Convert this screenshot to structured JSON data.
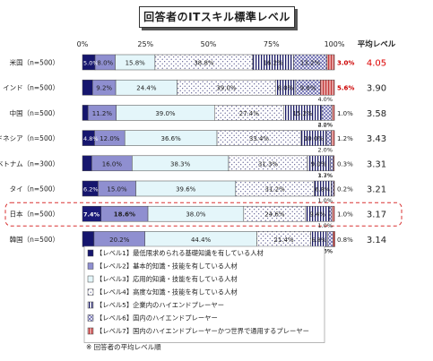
{
  "chart_data": {
    "type": "bar",
    "orientation": "horizontal",
    "stacked": true,
    "title": "回答者のITスキル標準レベル",
    "x_ticks": [
      "0%",
      "25%",
      "50%",
      "75%",
      "100%"
    ],
    "xlim": [
      0,
      100
    ],
    "avg_header": "平均レベル",
    "categories": [
      "米国（n=500）",
      "インド（n=500）",
      "中国（n=500）",
      "インドネシア（n=500）",
      "ベトナム（n=300）",
      "タイ（n=500）",
      "日本（n=500）",
      "韓国（n=500）"
    ],
    "averages": [
      "4.05",
      "3.90",
      "3.58",
      "3.43",
      "3.31",
      "3.21",
      "3.17",
      "3.14"
    ],
    "highlight_avg": [
      true,
      false,
      false,
      false,
      false,
      false,
      false,
      false
    ],
    "highlight_row": 6,
    "series": [
      {
        "name": "【レベル1】最低限求められる基礎知識を有している人材",
        "values": [
          5.0,
          4.0,
          2.2,
          4.8,
          3.7,
          6.2,
          7.4,
          4.6
        ]
      },
      {
        "name": "【レベル2】基本的知識・技能を有している人材",
        "values": [
          8.0,
          9.2,
          11.2,
          12.0,
          16.0,
          15.0,
          18.6,
          20.2
        ]
      },
      {
        "name": "【レベル3】応用的知識・技能を有している人材",
        "values": [
          15.8,
          24.4,
          39.0,
          36.6,
          38.3,
          39.6,
          38.0,
          44.4
        ]
      },
      {
        "name": "【レベル4】高度な知識・技能を有している人材",
        "values": [
          38.8,
          39.0,
          27.4,
          33.4,
          31.3,
          31.2,
          24.6,
          21.4
        ]
      },
      {
        "name": "【レベル5】企業内のハイエンドプレーヤー",
        "values": [
          16.2,
          8.0,
          15.2,
          10.0,
          9.0,
          6.8,
          9.4,
          6.8
        ]
      },
      {
        "name": "【レベル6】国内のハイエンドプレーヤー",
        "values": [
          13.2,
          9.8,
          4.0,
          2.0,
          1.3,
          1.0,
          1.0,
          2.0
        ]
      },
      {
        "name": "【レベル7】国内のハイエンドプレーヤーかつ世界で通用するプレーヤー",
        "values": [
          3.0,
          5.6,
          1.0,
          1.2,
          0.3,
          0.2,
          1.0,
          0.8
        ]
      }
    ],
    "highlight_values": [
      [
        6,
        0
      ],
      [
        6,
        1
      ]
    ],
    "grid": false,
    "legend_position": "bottom"
  },
  "note": "※ 回答者の平均レベル順"
}
